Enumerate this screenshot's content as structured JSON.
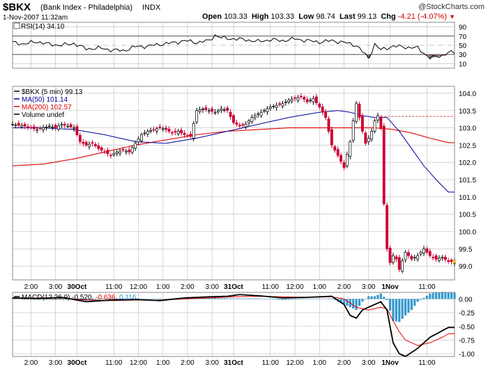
{
  "header": {
    "symbol": "$BKX",
    "name": "(Bank Index - Philadelphia)",
    "exchange": "INDX",
    "copyright": "@StockCharts.com",
    "datetime": "1-Nov-2007 11:32am",
    "open_label": "Open",
    "open": "103.33",
    "high_label": "High",
    "high": "103.33",
    "low_label": "Low",
    "low": "98.74",
    "last_label": "Last",
    "last": "99.13",
    "chg_label": "Chg",
    "chg": "-4.21 (-4.07%)",
    "down_arrow_icon": "down-triangle-icon"
  },
  "colors": {
    "up": "#000000",
    "down": "#cc0033",
    "ma50": "#000099",
    "ma200": "#dd0000",
    "rsi_fill": "#8b6969",
    "hist": "#3399cc",
    "grid": "#bbbbbb"
  },
  "chart_data": [
    {
      "type": "line",
      "panel": "rsi",
      "label": "RSI(14) 34.10",
      "ylim": [
        0,
        100
      ],
      "y_ticks": [
        10,
        30,
        50,
        70,
        90
      ],
      "overbought": 70,
      "oversold": 30,
      "x": [
        0,
        4,
        8,
        12,
        16,
        20,
        24,
        28,
        32,
        36,
        40,
        44,
        48,
        52,
        56,
        60,
        64,
        66,
        68,
        72,
        76,
        80,
        84,
        88,
        92,
        96,
        100,
        104,
        108,
        112,
        116,
        118,
        120,
        124,
        128,
        132,
        136,
        140,
        142
      ],
      "values": [
        56,
        53,
        58,
        52,
        50,
        54,
        42,
        44,
        40,
        38,
        47,
        48,
        52,
        55,
        60,
        56,
        60,
        72,
        66,
        64,
        62,
        58,
        62,
        60,
        64,
        60,
        57,
        60,
        56,
        50,
        22,
        52,
        40,
        48,
        46,
        44,
        22,
        28,
        34
      ]
    },
    {
      "type": "line",
      "panel": "price",
      "legend": [
        "$BKX (5 min) 99.13",
        "MA(50) 101.14",
        "MA(200) 102.57",
        "Volume undef"
      ],
      "ylim": [
        98.6,
        104.2
      ],
      "y_ticks": [
        99.0,
        99.5,
        100.0,
        100.5,
        101.0,
        101.5,
        102.0,
        102.5,
        103.0,
        103.5,
        104.0
      ],
      "x_tick_labels": [
        "2:00",
        "3:00",
        "30Oct",
        "11:00",
        "12:00",
        "1:00",
        "2:00",
        "3:00",
        "31Oct",
        "11:00",
        "12:00",
        "1:00",
        "2:00",
        "3:00",
        "1Nov",
        "11:00"
      ],
      "x_tick_pos": [
        6,
        14,
        21,
        33,
        41,
        49,
        57,
        65,
        72,
        84,
        92,
        100,
        108,
        116,
        123,
        135
      ],
      "reference_line": 103.33,
      "price": {
        "x": [
          0,
          4,
          8,
          12,
          14,
          16,
          18,
          20,
          22,
          24,
          26,
          28,
          30,
          32,
          34,
          36,
          38,
          40,
          42,
          44,
          46,
          48,
          50,
          52,
          54,
          56,
          58,
          60,
          62,
          64,
          66,
          68,
          70,
          72,
          74,
          76,
          78,
          80,
          82,
          84,
          86,
          88,
          90,
          92,
          94,
          96,
          98,
          100,
          102,
          104,
          106,
          108,
          110,
          111,
          112,
          113,
          114,
          115,
          116,
          117,
          118,
          119,
          120,
          121,
          122,
          123,
          124,
          125,
          126,
          128,
          130,
          132,
          134,
          136,
          138,
          140,
          142
        ],
        "values": [
          103.1,
          103.05,
          102.95,
          103.05,
          103.0,
          103.1,
          103.05,
          103.0,
          102.6,
          102.5,
          102.55,
          102.4,
          102.3,
          102.2,
          102.3,
          102.35,
          102.3,
          102.55,
          102.8,
          102.9,
          102.95,
          103.0,
          102.95,
          102.85,
          102.9,
          102.8,
          102.75,
          103.5,
          103.55,
          103.5,
          103.45,
          103.55,
          103.5,
          103.15,
          103.05,
          103.1,
          103.3,
          103.4,
          103.5,
          103.6,
          103.65,
          103.7,
          103.8,
          103.85,
          103.9,
          103.75,
          103.85,
          103.6,
          103.3,
          102.5,
          102.2,
          101.85,
          102.6,
          103.2,
          103.7,
          103.3,
          102.9,
          102.55,
          102.7,
          102.9,
          103.2,
          103.35,
          103.0,
          100.8,
          99.5,
          99.1,
          99.3,
          99.2,
          98.9,
          99.4,
          99.2,
          99.3,
          99.5,
          99.3,
          99.2,
          99.25,
          99.13
        ]
      },
      "ma50": {
        "x": [
          0,
          10,
          20,
          30,
          40,
          50,
          60,
          70,
          80,
          90,
          100,
          106,
          110,
          114,
          118,
          122,
          126,
          130,
          134,
          138,
          142
        ],
        "values": [
          103.0,
          103.0,
          102.95,
          102.8,
          102.6,
          102.55,
          102.7,
          102.9,
          103.1,
          103.3,
          103.45,
          103.5,
          103.45,
          103.35,
          103.3,
          103.3,
          102.9,
          102.4,
          101.9,
          101.5,
          101.14
        ]
      },
      "ma200": {
        "x": [
          0,
          10,
          20,
          30,
          40,
          50,
          60,
          70,
          80,
          90,
          100,
          110,
          118,
          124,
          130,
          136,
          142
        ],
        "values": [
          101.9,
          101.95,
          102.1,
          102.3,
          102.5,
          102.65,
          102.8,
          102.9,
          102.95,
          103.0,
          103.0,
          103.0,
          103.0,
          102.95,
          102.85,
          102.7,
          102.57
        ]
      }
    },
    {
      "type": "line",
      "panel": "macd",
      "label": "MACD(12,26,9)",
      "macd_value": "-0.520",
      "signal_value": "-0.636",
      "hist_value": "0.116",
      "ylim": [
        -1.05,
        0.12
      ],
      "y_ticks": [
        0.0,
        -0.25,
        -0.5,
        -0.75,
        -1.0
      ],
      "macd": {
        "x": [
          0,
          8,
          16,
          24,
          32,
          40,
          48,
          56,
          64,
          70,
          74,
          80,
          88,
          96,
          104,
          108,
          110,
          112,
          114,
          116,
          118,
          120,
          122,
          124,
          126,
          128,
          132,
          136,
          140,
          142
        ],
        "values": [
          0.02,
          0.01,
          0.03,
          -0.05,
          -0.02,
          -0.01,
          -0.03,
          0.02,
          0.04,
          0.05,
          0.08,
          0.06,
          0.02,
          0.03,
          0.05,
          -0.1,
          -0.3,
          -0.35,
          -0.2,
          -0.15,
          -0.1,
          -0.05,
          -0.2,
          -0.8,
          -1.0,
          -1.05,
          -0.9,
          -0.7,
          -0.58,
          -0.52
        ]
      },
      "signal": {
        "x": [
          0,
          8,
          16,
          24,
          32,
          40,
          48,
          56,
          64,
          72,
          80,
          88,
          96,
          104,
          108,
          112,
          116,
          120,
          122,
          124,
          126,
          128,
          132,
          136,
          140,
          142
        ],
        "values": [
          0.01,
          0.02,
          0.02,
          -0.02,
          -0.03,
          -0.02,
          -0.02,
          0.0,
          0.02,
          0.04,
          0.05,
          0.04,
          0.03,
          0.04,
          0.0,
          -0.15,
          -0.2,
          -0.15,
          -0.18,
          -0.4,
          -0.6,
          -0.75,
          -0.85,
          -0.8,
          -0.7,
          -0.636
        ]
      },
      "histogram": {
        "x": [
          0,
          8,
          16,
          24,
          32,
          40,
          48,
          56,
          64,
          72,
          80,
          88,
          96,
          104,
          108,
          110,
          112,
          114,
          116,
          118,
          120,
          122,
          124,
          126,
          128,
          130,
          132,
          134,
          136,
          138,
          140,
          142
        ],
        "values": [
          0.01,
          -0.01,
          0.01,
          -0.03,
          0.01,
          0.01,
          -0.01,
          0.02,
          0.02,
          0.01,
          0.01,
          -0.02,
          0.0,
          0.01,
          -0.1,
          -0.15,
          -0.2,
          -0.05,
          0.05,
          0.05,
          0.1,
          -0.02,
          -0.4,
          -0.42,
          -0.3,
          -0.2,
          -0.05,
          0.02,
          0.1,
          0.12,
          0.13,
          0.116
        ]
      }
    }
  ]
}
